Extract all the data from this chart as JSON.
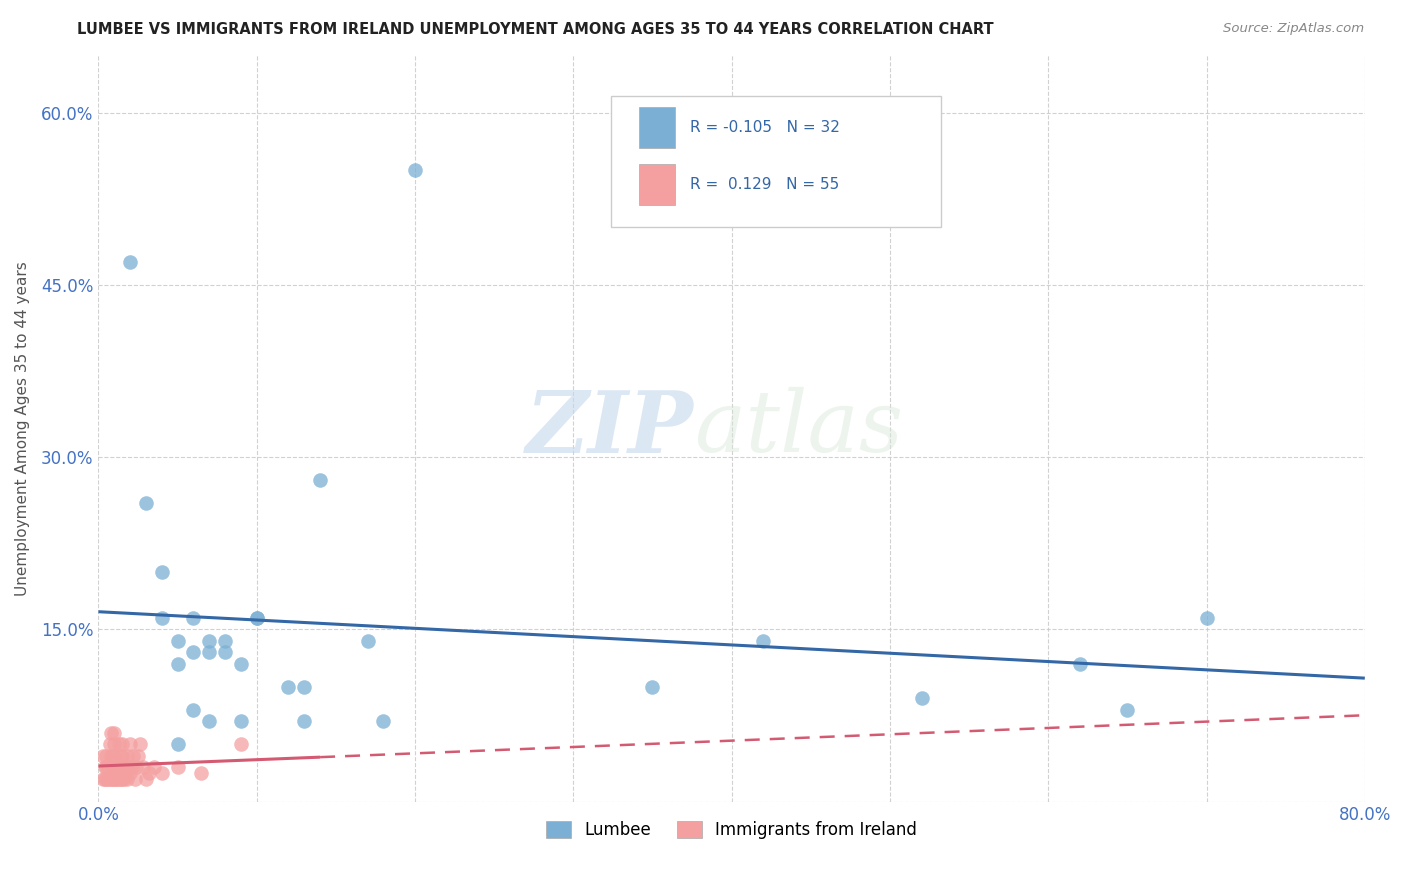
{
  "title": "LUMBEE VS IMMIGRANTS FROM IRELAND UNEMPLOYMENT AMONG AGES 35 TO 44 YEARS CORRELATION CHART",
  "source": "Source: ZipAtlas.com",
  "ylabel": "Unemployment Among Ages 35 to 44 years",
  "xlim": [
    0,
    0.8
  ],
  "ylim": [
    0,
    0.65
  ],
  "xticks": [
    0.0,
    0.1,
    0.2,
    0.3,
    0.4,
    0.5,
    0.6,
    0.7,
    0.8
  ],
  "yticks": [
    0.0,
    0.15,
    0.3,
    0.45,
    0.6
  ],
  "lumbee_color": "#7bafd4",
  "ireland_color": "#f4a0a0",
  "lumbee_line_color": "#3467a6",
  "ireland_line_color": "#d45a72",
  "lumbee_R": -0.105,
  "lumbee_N": 32,
  "ireland_R": 0.129,
  "ireland_N": 55,
  "lumbee_x": [
    0.02,
    0.03,
    0.04,
    0.05,
    0.05,
    0.05,
    0.06,
    0.06,
    0.06,
    0.07,
    0.07,
    0.07,
    0.08,
    0.08,
    0.09,
    0.09,
    0.1,
    0.1,
    0.12,
    0.13,
    0.13,
    0.14,
    0.17,
    0.2,
    0.35,
    0.42,
    0.52,
    0.62,
    0.65,
    0.7,
    0.04,
    0.18
  ],
  "lumbee_y": [
    0.47,
    0.26,
    0.2,
    0.14,
    0.12,
    0.05,
    0.16,
    0.13,
    0.08,
    0.14,
    0.13,
    0.07,
    0.14,
    0.13,
    0.12,
    0.07,
    0.16,
    0.16,
    0.1,
    0.1,
    0.07,
    0.28,
    0.14,
    0.55,
    0.1,
    0.14,
    0.09,
    0.12,
    0.08,
    0.16,
    0.16,
    0.07
  ],
  "ireland_x": [
    0.003,
    0.003,
    0.004,
    0.004,
    0.005,
    0.005,
    0.005,
    0.006,
    0.006,
    0.007,
    0.007,
    0.008,
    0.008,
    0.008,
    0.009,
    0.009,
    0.01,
    0.01,
    0.01,
    0.01,
    0.01,
    0.011,
    0.011,
    0.012,
    0.012,
    0.013,
    0.013,
    0.013,
    0.014,
    0.014,
    0.015,
    0.015,
    0.015,
    0.016,
    0.016,
    0.017,
    0.018,
    0.018,
    0.019,
    0.02,
    0.02,
    0.021,
    0.022,
    0.023,
    0.024,
    0.025,
    0.026,
    0.028,
    0.03,
    0.032,
    0.035,
    0.04,
    0.05,
    0.065,
    0.09
  ],
  "ireland_y": [
    0.02,
    0.04,
    0.02,
    0.03,
    0.02,
    0.03,
    0.04,
    0.02,
    0.03,
    0.02,
    0.05,
    0.02,
    0.04,
    0.06,
    0.02,
    0.04,
    0.02,
    0.03,
    0.04,
    0.05,
    0.06,
    0.02,
    0.03,
    0.02,
    0.03,
    0.02,
    0.03,
    0.05,
    0.02,
    0.04,
    0.02,
    0.04,
    0.05,
    0.02,
    0.03,
    0.025,
    0.02,
    0.04,
    0.03,
    0.025,
    0.05,
    0.03,
    0.04,
    0.02,
    0.03,
    0.04,
    0.05,
    0.03,
    0.02,
    0.025,
    0.03,
    0.025,
    0.03,
    0.025,
    0.05
  ],
  "watermark_zip": "ZIP",
  "watermark_atlas": "atlas",
  "dot_size": 110,
  "background_color": "#ffffff",
  "grid_color": "#cccccc"
}
